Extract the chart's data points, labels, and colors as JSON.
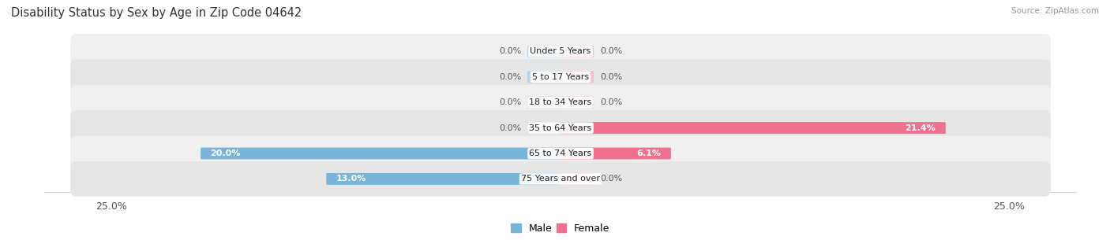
{
  "title": "Disability Status by Sex by Age in Zip Code 04642",
  "source": "Source: ZipAtlas.com",
  "categories": [
    "Under 5 Years",
    "5 to 17 Years",
    "18 to 34 Years",
    "35 to 64 Years",
    "65 to 74 Years",
    "75 Years and over"
  ],
  "male_values": [
    0.0,
    0.0,
    0.0,
    0.0,
    20.0,
    13.0
  ],
  "female_values": [
    0.0,
    0.0,
    0.0,
    21.4,
    6.1,
    0.0
  ],
  "male_color": "#7ab4d8",
  "female_color": "#f07090",
  "male_stub_color": "#b8d4e8",
  "female_stub_color": "#f8bcd0",
  "row_bg_even": "#f0f0f0",
  "row_bg_odd": "#e6e6e6",
  "x_max": 25.0,
  "x_min": -25.0,
  "label_color": "#555555",
  "title_color": "#333333",
  "title_fontsize": 10.5,
  "axis_label_fontsize": 9,
  "bar_label_fontsize": 8,
  "category_fontsize": 8,
  "stub_size": 1.8
}
